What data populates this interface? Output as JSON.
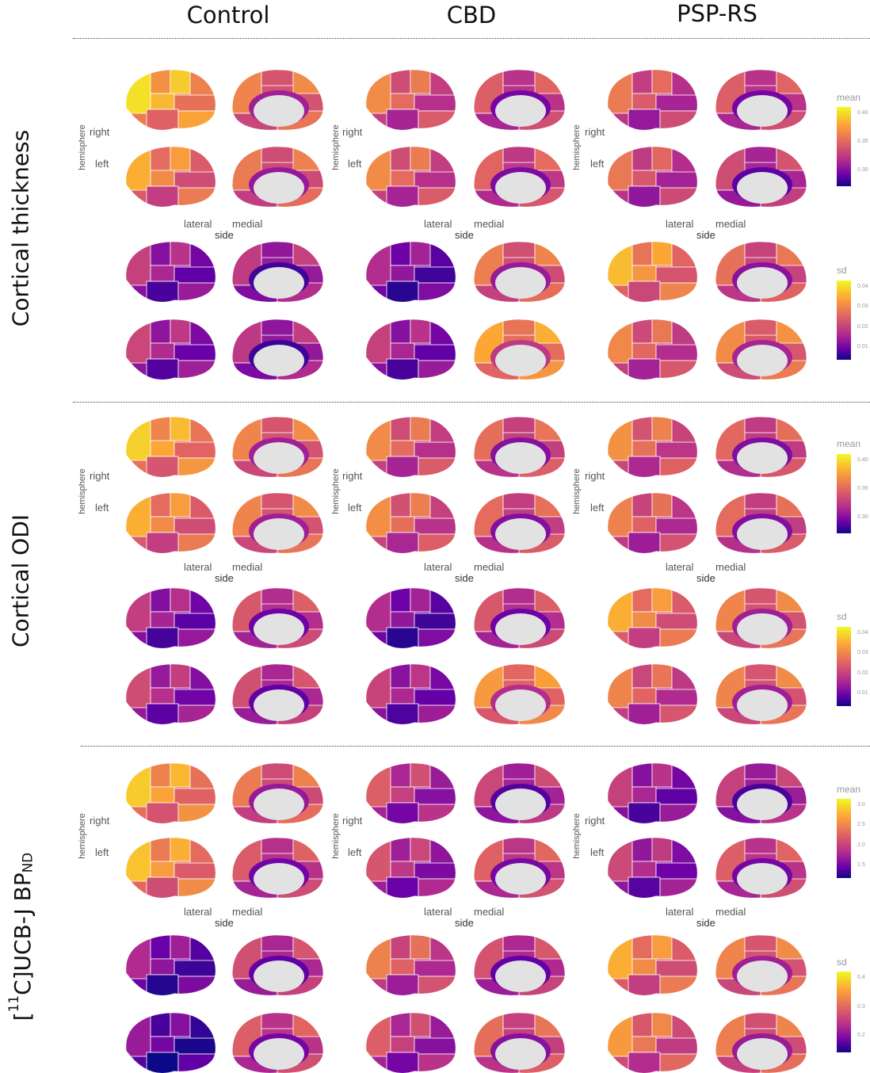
{
  "columns": [
    "Control",
    "CBD",
    "PSP-RS"
  ],
  "rows": [
    {
      "label": "Cortical thickness"
    },
    {
      "label": "Cortical ODI"
    },
    {
      "label_prefix": "[",
      "label_sup": "11",
      "label_mid": "C]UCB-J BP",
      "label_sub": "ND"
    }
  ],
  "axis_labels": {
    "hemisphere": "hemisphere",
    "right": "right",
    "left": "left",
    "lateral": "lateral",
    "medial": "medial",
    "side": "side"
  },
  "legends": [
    {
      "mean": {
        "title": "mean",
        "ticks": [
          "0.40",
          "0.35",
          "0.30"
        ]
      },
      "sd": {
        "title": "sd",
        "ticks": [
          "0.04",
          "0.03",
          "0.02",
          "0.01"
        ]
      }
    },
    {
      "mean": {
        "title": "mean",
        "ticks": [
          "0.40",
          "0.35",
          "0.30"
        ]
      },
      "sd": {
        "title": "sd",
        "ticks": [
          "0.04",
          "0.03",
          "0.02",
          "0.01"
        ]
      }
    },
    {
      "mean": {
        "title": "mean",
        "ticks": [
          "3.0",
          "2.5",
          "2.0",
          "1.5"
        ]
      },
      "sd": {
        "title": "sd",
        "ticks": [
          "0.4",
          "0.3",
          "0.2"
        ]
      }
    }
  ],
  "colormap": [
    "#0d0887",
    "#6a00a8",
    "#b12a90",
    "#e16462",
    "#fca636",
    "#f0f921"
  ],
  "brain_levels": [
    [
      [
        [
          0.85,
          0.7,
          0.7,
          0.45
        ],
        [
          0.75,
          0.55,
          0.65,
          0.45
        ],
        [
          0.35,
          0.3,
          0.4,
          0.3
        ],
        [
          0.35,
          0.35,
          0.35,
          0.35
        ]
      ],
      [
        [
          0.65,
          0.45,
          0.6,
          0.3
        ],
        [
          0.65,
          0.45,
          0.6,
          0.35
        ],
        [
          0.2,
          0.35,
          0.6,
          0.55
        ],
        [
          0.25,
          0.45,
          0.7,
          0.7
        ]
      ],
      [
        [
          0.7,
          0.25,
          0.6,
          0.3
        ],
        [
          0.65,
          0.3,
          0.5,
          0.3
        ],
        [
          0.6,
          0.85,
          0.3,
          0.9
        ],
        [
          0.5,
          0.65,
          0.5,
          0.8
        ]
      ]
    ],
    [
      [
        [
          0.85,
          0.6,
          0.7,
          0.45
        ],
        [
          0.75,
          0.55,
          0.7,
          0.45
        ],
        [
          0.3,
          0.35,
          0.5,
          0.4
        ],
        [
          0.35,
          0.4,
          0.45,
          0.4
        ]
      ],
      [
        [
          0.65,
          0.45,
          0.65,
          0.35
        ],
        [
          0.7,
          0.4,
          0.6,
          0.4
        ],
        [
          0.2,
          0.35,
          0.5,
          0.4
        ],
        [
          0.3,
          0.4,
          0.7,
          0.6
        ]
      ],
      [
        [
          0.75,
          0.35,
          0.65,
          0.3
        ],
        [
          0.7,
          0.3,
          0.6,
          0.4
        ],
        [
          0.55,
          0.85,
          0.4,
          0.9
        ],
        [
          0.45,
          0.7,
          0.5,
          0.75
        ]
      ]
    ],
    [
      [
        [
          0.7,
          0.8,
          0.65,
          0.45
        ],
        [
          0.7,
          0.75,
          0.45,
          0.5
        ],
        [
          0.15,
          0.4,
          0.45,
          0.4
        ],
        [
          0.1,
          0.3,
          0.4,
          0.6
        ]
      ],
      [
        [
          0.45,
          0.4,
          0.5,
          0.25
        ],
        [
          0.4,
          0.4,
          0.45,
          0.55
        ],
        [
          0.5,
          0.6,
          0.4,
          0.5
        ],
        [
          0.35,
          0.55,
          0.45,
          0.65
        ]
      ],
      [
        [
          0.35,
          0.3,
          0.4,
          0.35
        ],
        [
          0.3,
          0.45,
          0.5,
          0.45
        ],
        [
          0.55,
          0.85,
          0.5,
          0.75
        ],
        [
          0.55,
          0.7,
          0.5,
          0.7
        ]
      ]
    ]
  ]
}
